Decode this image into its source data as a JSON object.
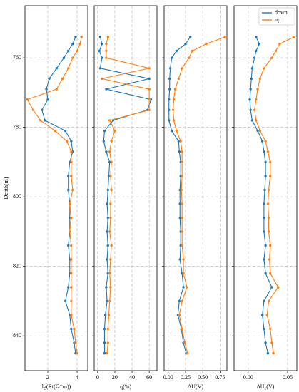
{
  "chart_data": [
    {
      "type": "line",
      "xlabel": "lg(Rt(Ω*m))",
      "ylabel": "Depth(m)",
      "y": [
        754,
        756,
        758,
        760,
        763,
        766,
        769,
        772,
        775,
        778,
        781,
        784,
        787,
        790,
        794,
        798,
        802,
        806,
        810,
        814,
        818,
        822,
        826,
        830,
        834,
        838,
        842,
        845
      ],
      "ylim": [
        850,
        745
      ],
      "yticks": [
        760,
        780,
        800,
        820,
        840
      ],
      "xlim": [
        0.44,
        4.73
      ],
      "xticks": [
        2,
        4
      ],
      "grid": true,
      "series": [
        {
          "name": "down",
          "color": "#1f77b4",
          "values": [
            3.9,
            3.7,
            3.4,
            3.1,
            2.6,
            2.1,
            1.9,
            2.0,
            1.6,
            1.8,
            3.2,
            3.6,
            3.7,
            3.5,
            3.4,
            3.4,
            3.5,
            3.5,
            3.5,
            3.4,
            3.5,
            3.5,
            3.4,
            3.2,
            3.5,
            3.6,
            3.8,
            3.9
          ]
        },
        {
          "name": "up",
          "color": "#ff7f0e",
          "values": [
            4.3,
            4.2,
            4.0,
            3.7,
            3.4,
            3.0,
            2.6,
            0.6,
            1.0,
            1.5,
            2.5,
            3.3,
            3.6,
            3.6,
            3.6,
            3.7,
            3.5,
            3.6,
            3.5,
            3.6,
            3.6,
            3.6,
            3.6,
            3.6,
            3.6,
            3.8,
            3.9,
            4.0
          ]
        }
      ]
    },
    {
      "type": "line",
      "xlabel": "η(%)",
      "xlim": [
        -4,
        69
      ],
      "xticks": [
        0,
        20,
        40,
        60
      ],
      "grid": true,
      "series": [
        {
          "name": "down",
          "color": "#1f77b4",
          "values": [
            3,
            5,
            2,
            5,
            3,
            60,
            10,
            62,
            58,
            18,
            8,
            7,
            10,
            14,
            13,
            12,
            11,
            12,
            11,
            12,
            11,
            12,
            10,
            11,
            9,
            8,
            8,
            8
          ]
        },
        {
          "name": "up",
          "color": "#ff7f0e",
          "values": [
            12,
            10,
            10,
            10,
            60,
            5,
            60,
            60,
            60,
            14,
            20,
            16,
            14,
            16,
            15,
            16,
            15,
            15,
            14,
            16,
            15,
            14,
            15,
            14,
            13,
            12,
            12,
            11
          ]
        }
      ]
    },
    {
      "type": "line",
      "xlabel": "ΔU(V)",
      "xlim": [
        -0.06,
        0.85
      ],
      "xticks": [
        {
          "value": 0,
          "label": "0.00"
        },
        0.25,
        {
          "value": 0.5,
          "label": "0.50"
        },
        0.75
      ],
      "grid": true,
      "series": [
        {
          "name": "down",
          "color": "#1f77b4",
          "values": [
            0.32,
            0.25,
            0.12,
            0.05,
            0.03,
            0.02,
            0.02,
            0.01,
            0.01,
            0.01,
            0.05,
            0.15,
            0.16,
            0.18,
            0.18,
            0.17,
            0.17,
            0.17,
            0.18,
            0.18,
            0.17,
            0.2,
            0.22,
            0.16,
            0.14,
            0.19,
            0.22,
            0.26
          ]
        },
        {
          "name": "up",
          "color": "#ff7f0e",
          "values": [
            0.82,
            0.55,
            0.35,
            0.3,
            0.2,
            0.15,
            0.1,
            0.08,
            0.07,
            0.08,
            0.12,
            0.18,
            0.2,
            0.2,
            0.2,
            0.19,
            0.2,
            0.2,
            0.2,
            0.2,
            0.22,
            0.22,
            0.27,
            0.2,
            0.16,
            0.2,
            0.24,
            0.28
          ]
        }
      ]
    },
    {
      "type": "line",
      "xlabel": "ΔU₂(V)",
      "xlim": [
        -0.018,
        0.0618
      ],
      "xticks": [
        {
          "value": 0,
          "label": "0.00"
        },
        0.05
      ],
      "grid": true,
      "legend": "upper right",
      "series": [
        {
          "name": "down",
          "color": "#1f77b4",
          "values": [
            0.01,
            0.014,
            0.01,
            0.008,
            0.005,
            0.004,
            0.003,
            0.002,
            0.003,
            0.005,
            0.012,
            0.018,
            0.02,
            0.022,
            0.022,
            0.021,
            0.02,
            0.02,
            0.02,
            0.022,
            0.02,
            0.022,
            0.03,
            0.02,
            0.018,
            0.02,
            0.022,
            0.025
          ]
        },
        {
          "name": "up",
          "color": "#ff7f0e",
          "values": [
            0.058,
            0.04,
            0.035,
            0.03,
            0.02,
            0.015,
            0.012,
            0.01,
            0.008,
            0.01,
            0.015,
            0.022,
            0.025,
            0.028,
            0.028,
            0.026,
            0.025,
            0.026,
            0.026,
            0.028,
            0.027,
            0.028,
            0.038,
            0.026,
            0.024,
            0.028,
            0.03,
            0.032
          ]
        }
      ]
    }
  ]
}
